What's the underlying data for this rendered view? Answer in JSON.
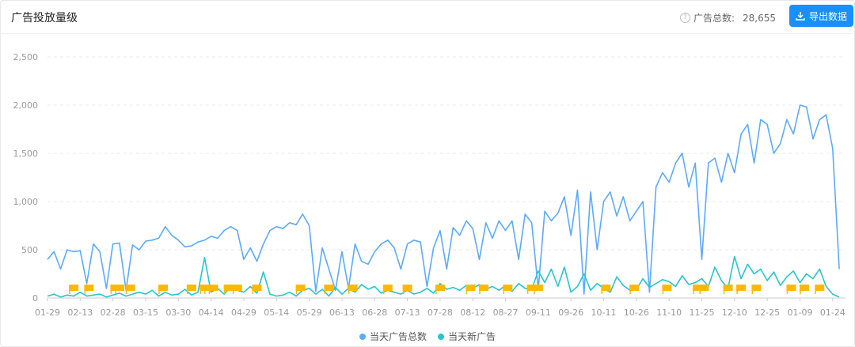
{
  "header": {
    "title": "广告投放量级",
    "total_label": "广告总数:",
    "total_value": "28,655",
    "export_label": "导出数据",
    "help_icon": "question-circle-icon",
    "export_icon": "download-icon"
  },
  "chart_data": {
    "type": "line",
    "ylim": [
      0,
      2500
    ],
    "y_ticks": [
      "0",
      "500",
      "1,000",
      "1,500",
      "2,000",
      "2,500"
    ],
    "y_tick_values": [
      0,
      500,
      1000,
      1500,
      2000,
      2500
    ],
    "x_ticks": [
      "01-29",
      "02-13",
      "02-28",
      "03-15",
      "03-30",
      "04-14",
      "04-29",
      "05-14",
      "05-29",
      "06-13",
      "06-28",
      "07-13",
      "07-28",
      "08-12",
      "08-27",
      "09-11",
      "09-26",
      "10-11",
      "10-26",
      "11-10",
      "11-25",
      "12-10",
      "12-25",
      "01-09",
      "01-24"
    ],
    "grid": "horizontal-dashed",
    "legend_position": "bottom",
    "series": [
      {
        "name": "当天广告总数",
        "color": "#5aabff",
        "values": [
          400,
          480,
          300,
          500,
          480,
          490,
          150,
          560,
          480,
          100,
          560,
          570,
          80,
          550,
          500,
          590,
          600,
          620,
          740,
          650,
          600,
          530,
          540,
          580,
          600,
          640,
          620,
          700,
          740,
          700,
          400,
          520,
          380,
          560,
          700,
          740,
          720,
          780,
          760,
          870,
          750,
          70,
          520,
          300,
          80,
          480,
          100,
          560,
          380,
          350,
          480,
          560,
          600,
          520,
          300,
          560,
          600,
          580,
          120,
          520,
          700,
          300,
          730,
          650,
          800,
          720,
          400,
          780,
          620,
          800,
          700,
          800,
          400,
          870,
          780,
          90,
          900,
          800,
          880,
          1050,
          650,
          1120,
          40,
          1100,
          500,
          1000,
          1100,
          850,
          1050,
          800,
          900,
          1000,
          60,
          1150,
          1300,
          1200,
          1400,
          1500,
          1150,
          1400,
          400,
          1400,
          1450,
          1200,
          1500,
          1300,
          1700,
          1800,
          1400,
          1850,
          1800,
          1500,
          1600,
          1850,
          1700,
          2000,
          1980,
          1650,
          1850,
          1900,
          1550,
          300
        ]
      },
      {
        "name": "当天新广告",
        "color": "#26c6d0",
        "values": [
          20,
          40,
          10,
          30,
          20,
          60,
          20,
          30,
          40,
          10,
          30,
          50,
          20,
          40,
          60,
          40,
          80,
          20,
          60,
          30,
          40,
          90,
          30,
          60,
          420,
          60,
          100,
          40,
          120,
          80,
          60,
          120,
          50,
          270,
          40,
          20,
          30,
          60,
          20,
          80,
          100,
          40,
          90,
          20,
          110,
          40,
          100,
          60,
          140,
          90,
          120,
          50,
          80,
          60,
          40,
          80,
          40,
          60,
          100,
          50,
          150,
          90,
          110,
          80,
          130,
          100,
          140,
          90,
          120,
          80,
          130,
          70,
          150,
          100,
          90,
          280,
          160,
          300,
          120,
          320,
          60,
          120,
          250,
          80,
          150,
          100,
          60,
          220,
          130,
          80,
          90,
          200,
          110,
          150,
          190,
          170,
          120,
          230,
          140,
          160,
          200,
          120,
          320,
          180,
          100,
          430,
          200,
          350,
          250,
          300,
          180,
          270,
          130,
          220,
          280,
          160,
          250,
          200,
          300,
          120,
          40,
          10
        ]
      }
    ],
    "event_markers": {
      "color": "#fcb900",
      "dates": [
        "02-10",
        "02-17",
        "03-01",
        "03-03",
        "03-08",
        "03-23",
        "04-05",
        "04-11",
        "04-13",
        "04-15",
        "04-22",
        "04-26",
        "05-05",
        "05-25",
        "06-07",
        "06-18",
        "07-04",
        "07-13",
        "07-28",
        "08-11",
        "08-17",
        "08-28",
        "09-08",
        "09-11",
        "10-12",
        "10-25",
        "11-09",
        "11-23",
        "11-26",
        "12-07",
        "12-13",
        "12-20",
        "01-05",
        "01-11",
        "01-18"
      ]
    }
  }
}
